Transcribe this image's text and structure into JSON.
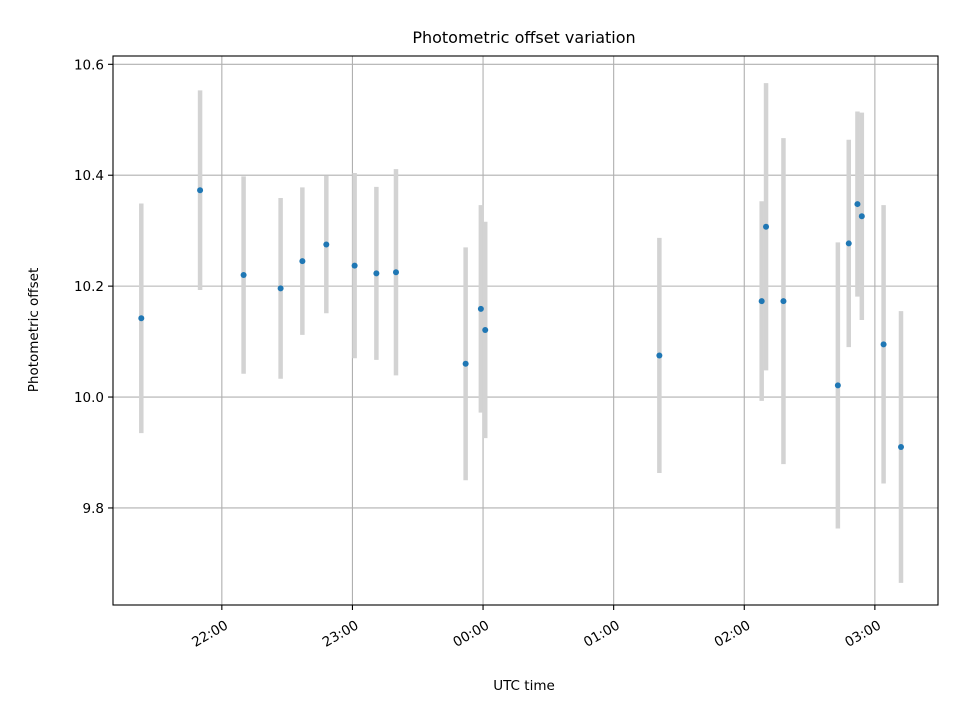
{
  "chart_data": {
    "type": "scatter",
    "title": "Photometric offset variation",
    "xlabel": "UTC time",
    "ylabel": "Photometric offset",
    "x_axis_kind": "time",
    "xlim": [
      "21:10",
      "03:29"
    ],
    "ylim": [
      9.625,
      10.615
    ],
    "x_ticks": [
      "22:00",
      "23:00",
      "00:00",
      "01:00",
      "02:00",
      "03:00"
    ],
    "y_ticks": [
      9.8,
      10.0,
      10.2,
      10.4,
      10.6
    ],
    "y_tick_labels": [
      "9.8",
      "10.0",
      "10.2",
      "10.4",
      "10.6"
    ],
    "grid": true,
    "colors": {
      "points": "#1f77b4",
      "error_bars": "#d3d3d3"
    },
    "series": [
      {
        "points": [
          {
            "t": "21:23",
            "y": 10.142,
            "err": 0.207
          },
          {
            "t": "21:50",
            "y": 10.373,
            "err": 0.18
          },
          {
            "t": "22:10",
            "y": 10.22,
            "err": 0.178
          },
          {
            "t": "22:27",
            "y": 10.196,
            "err": 0.163
          },
          {
            "t": "22:37",
            "y": 10.245,
            "err": 0.133
          },
          {
            "t": "22:48",
            "y": 10.275,
            "err": 0.124
          },
          {
            "t": "23:01",
            "y": 10.237,
            "err": 0.167
          },
          {
            "t": "23:11",
            "y": 10.223,
            "err": 0.156
          },
          {
            "t": "23:20",
            "y": 10.225,
            "err": 0.186
          },
          {
            "t": "23:52",
            "y": 10.06,
            "err": 0.21
          },
          {
            "t": "23:59",
            "y": 10.159,
            "err": 0.187
          },
          {
            "t": "00:01",
            "y": 10.121,
            "err": 0.195
          },
          {
            "t": "01:21",
            "y": 10.075,
            "err": 0.212
          },
          {
            "t": "02:08",
            "y": 10.173,
            "err": 0.18
          },
          {
            "t": "02:10",
            "y": 10.307,
            "err": 0.259
          },
          {
            "t": "02:18",
            "y": 10.173,
            "err": 0.294
          },
          {
            "t": "02:43",
            "y": 10.021,
            "err": 0.258
          },
          {
            "t": "02:48",
            "y": 10.277,
            "err": 0.187
          },
          {
            "t": "02:52",
            "y": 10.348,
            "err": 0.167
          },
          {
            "t": "02:54",
            "y": 10.326,
            "err": 0.187
          },
          {
            "t": "03:04",
            "y": 10.095,
            "err": 0.251
          },
          {
            "t": "03:12",
            "y": 9.91,
            "err": 0.245
          }
        ]
      }
    ]
  }
}
